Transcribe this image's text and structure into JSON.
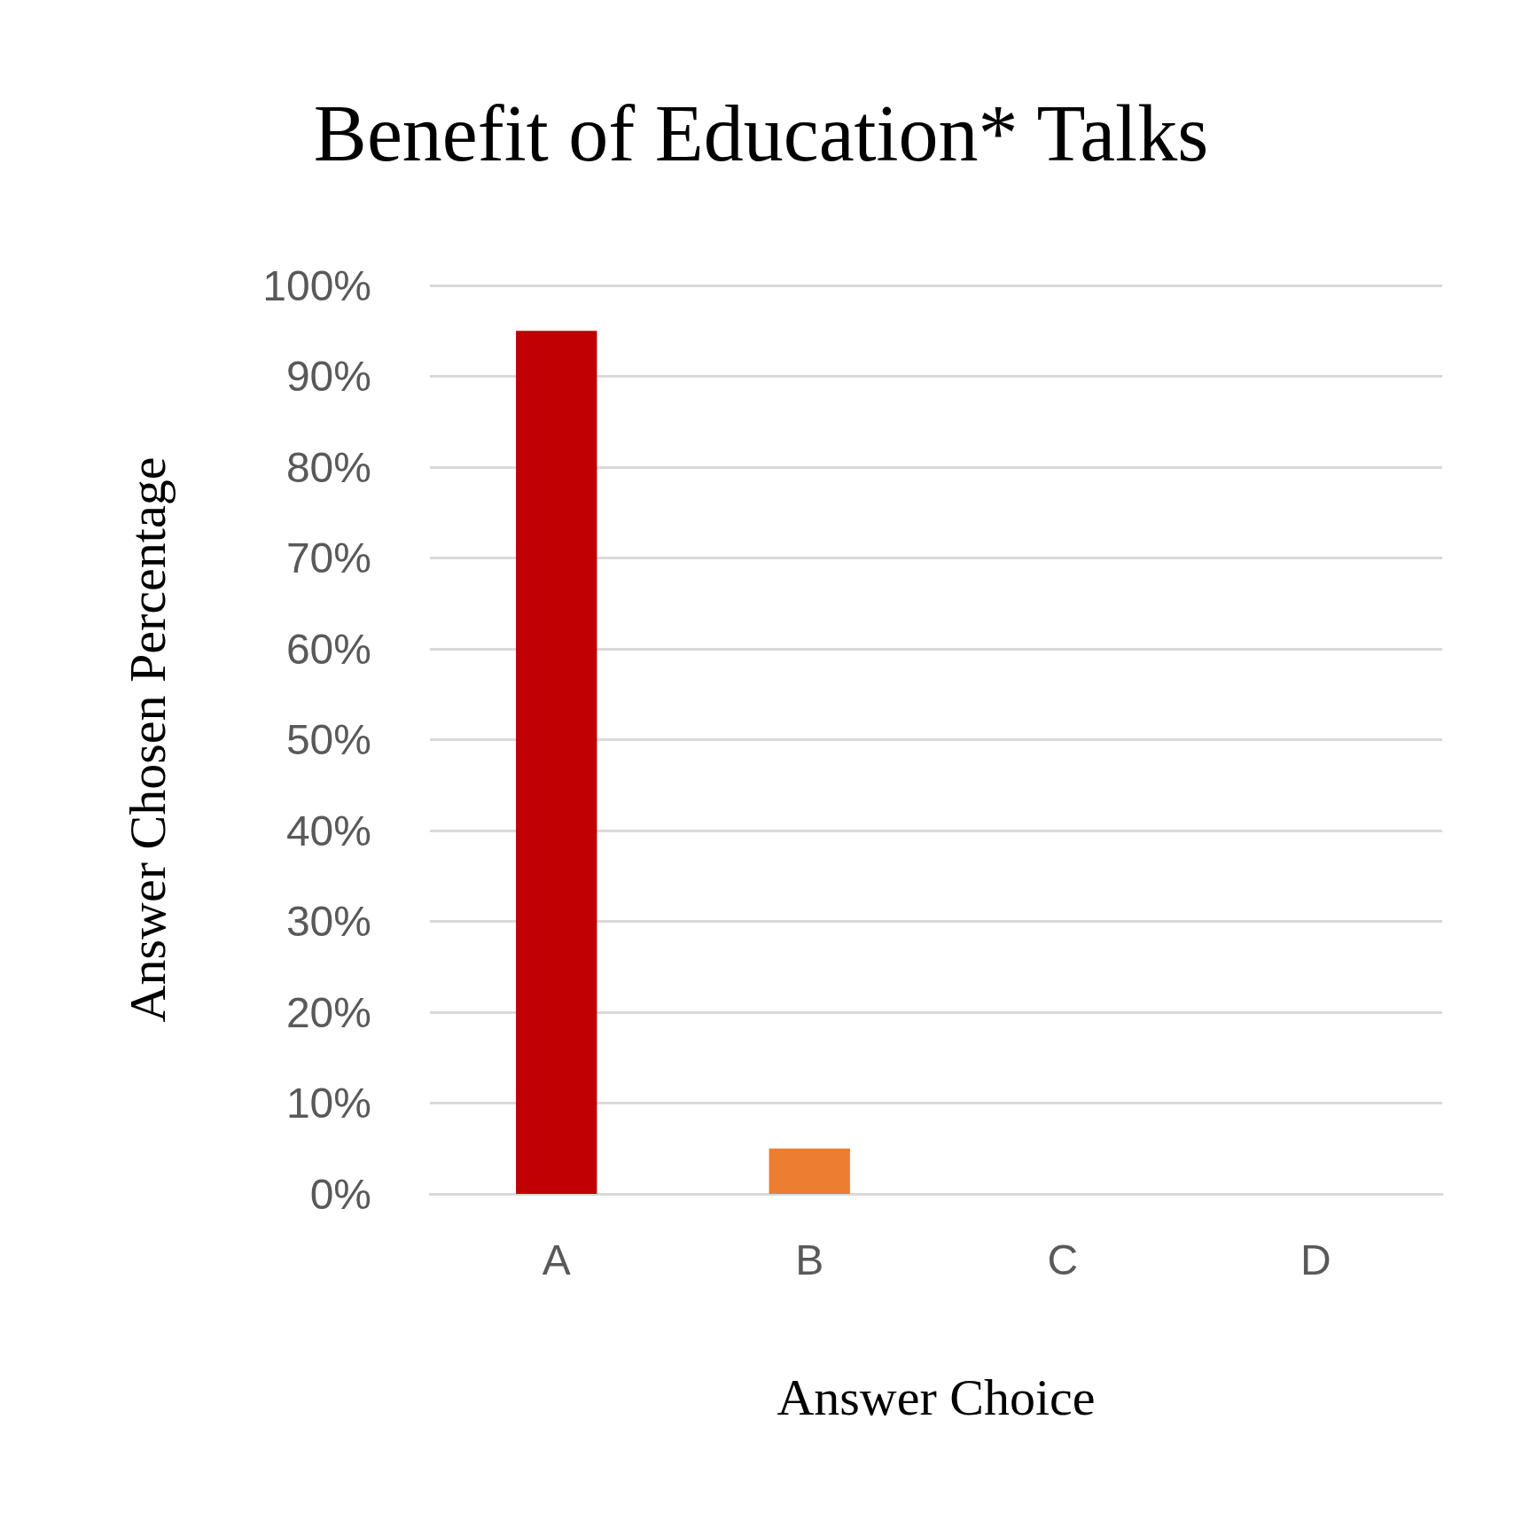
{
  "chart_data": {
    "type": "bar",
    "title": "Benefit of Education* Talks",
    "xlabel": "Answer Choice",
    "ylabel": "Answer Chosen Percentage",
    "categories": [
      "A",
      "B",
      "C",
      "D"
    ],
    "values": [
      95,
      5,
      0,
      0
    ],
    "colors": [
      "#c00000",
      "#ed7d31",
      "#ed7d31",
      "#ed7d31"
    ],
    "ylim": [
      0,
      100
    ],
    "yticks": [
      {
        "value": 0,
        "label": "0%"
      },
      {
        "value": 10,
        "label": "10%"
      },
      {
        "value": 20,
        "label": "20%"
      },
      {
        "value": 30,
        "label": "30%"
      },
      {
        "value": 40,
        "label": "40%"
      },
      {
        "value": 50,
        "label": "50%"
      },
      {
        "value": 60,
        "label": "60%"
      },
      {
        "value": 70,
        "label": "70%"
      },
      {
        "value": 80,
        "label": "80%"
      },
      {
        "value": 90,
        "label": "90%"
      },
      {
        "value": 100,
        "label": "100%"
      }
    ],
    "grid": "y"
  }
}
